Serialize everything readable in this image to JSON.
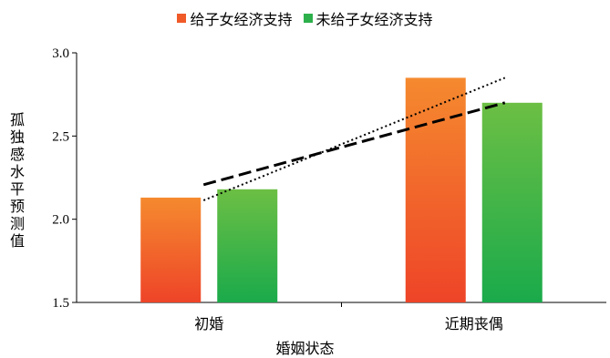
{
  "chart_data": {
    "type": "bar",
    "ylabel": "孤独感水平预测值",
    "xlabel": "婚姻状态",
    "categories": [
      "初婚",
      "近期丧偶"
    ],
    "series": [
      {
        "name": "给子女经济支持",
        "values": [
          2.13,
          2.85
        ],
        "color_top": "#F58A2F",
        "color_bottom": "#EE4428"
      },
      {
        "name": "未给子女经济支持",
        "values": [
          2.18,
          2.7
        ],
        "color_top": "#6CBF44",
        "color_bottom": "#1AAA4B"
      }
    ],
    "trendlines": [
      {
        "series": "给子女经济支持",
        "style": "dotted",
        "values": [
          2.13,
          2.85
        ]
      },
      {
        "series": "未给子女经济支持",
        "style": "dashed",
        "values": [
          2.18,
          2.7
        ]
      }
    ],
    "ylim": [
      1.5,
      3.0
    ],
    "yticks": [
      "1.5",
      "2.0",
      "2.5",
      "3.0"
    ],
    "legend_position": "top",
    "grid": false
  }
}
